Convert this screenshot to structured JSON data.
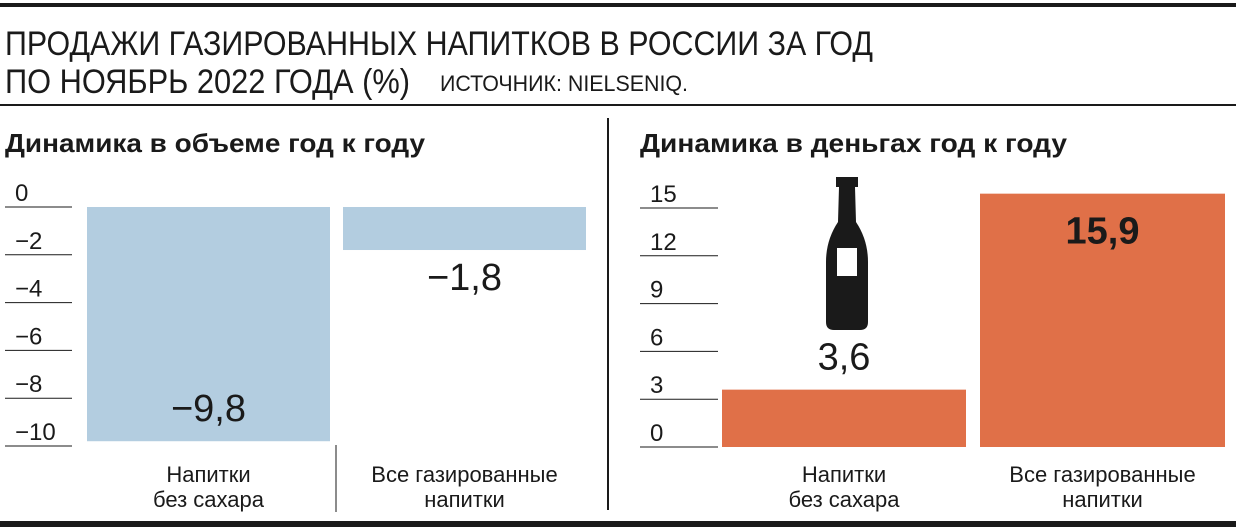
{
  "header": {
    "title_lines": [
      "ПРОДАЖИ ГАЗИРОВАННЫХ НАПИТКОВ В РОССИИ ЗА ГОД",
      "ПО НОЯБРЬ 2022 ГОДА (%)"
    ],
    "source": "ИСТОЧНИК: NIELSENIQ."
  },
  "chart_data": [
    {
      "type": "bar",
      "title": "Динамика в объеме год к году",
      "categories": [
        [
          "Напитки",
          "без сахара"
        ],
        [
          "Все газированные",
          "напитки"
        ]
      ],
      "values": [
        -9.8,
        -1.8
      ],
      "value_labels": [
        "−9,8",
        "−1,8"
      ],
      "color": "#b3cde0",
      "ylim": [
        -10,
        0
      ],
      "yticks": [
        0,
        {
          "value": -2,
          "label": "−2"
        },
        {
          "value": -4,
          "label": "−4"
        },
        {
          "value": -6,
          "label": "−6"
        },
        {
          "value": -8,
          "label": "−8"
        },
        {
          "value": -10,
          "label": "−10"
        }
      ]
    },
    {
      "type": "bar",
      "title": "Динамика в деньгах год к году",
      "categories": [
        [
          "Напитки",
          "без сахара"
        ],
        [
          "Все газированные",
          "напитки"
        ]
      ],
      "values": [
        3.6,
        15.9
      ],
      "value_labels": [
        "3,6",
        "15,9"
      ],
      "color": "#e07048",
      "ylim": [
        0,
        15
      ],
      "yticks": [
        15,
        12,
        9,
        6,
        3,
        0
      ]
    }
  ]
}
